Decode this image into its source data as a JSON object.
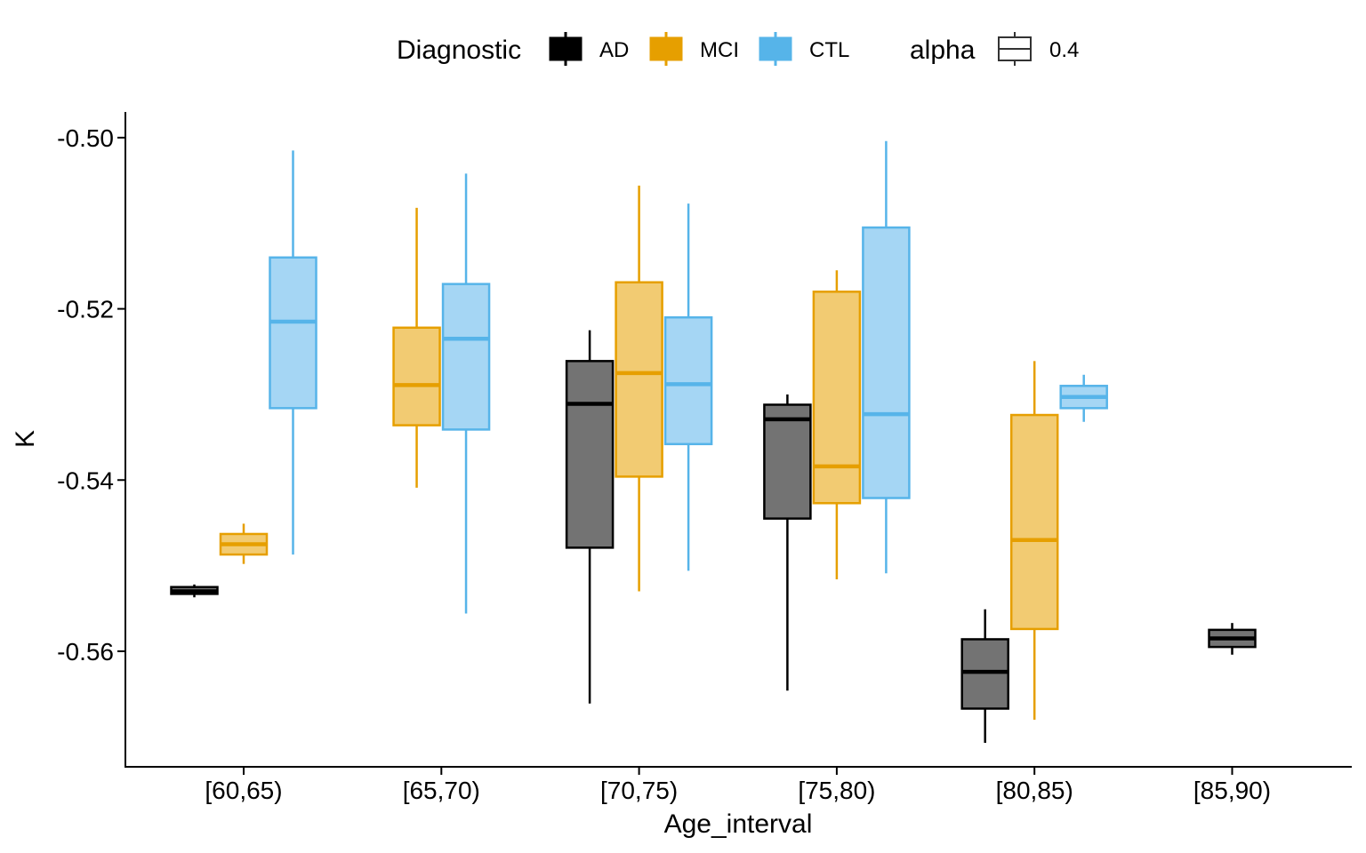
{
  "chart_data": {
    "type": "box",
    "xlabel": "Age_interval",
    "ylabel": "K",
    "categories": [
      "[60,65)",
      "[65,70)",
      "[70,75)",
      "[75,80)",
      "[80,85)",
      "[85,90)"
    ],
    "yticks": [
      "-0.50",
      "-0.52",
      "-0.54",
      "-0.56"
    ],
    "ytick_values": [
      -0.5,
      -0.52,
      -0.54,
      -0.56
    ],
    "ylim": [
      -0.5735,
      -0.497
    ],
    "grid": false,
    "legend_position": "top",
    "legend": {
      "fill_title": "Diagnostic",
      "alpha_title": "alpha",
      "alpha_value": "0.4"
    },
    "series": [
      {
        "name": "AD",
        "color": "#000000",
        "fill": "#737373",
        "boxes": [
          {
            "category": "[60,65)",
            "whisker_low": -0.5537,
            "q1": -0.5533,
            "median": -0.553,
            "q3": -0.5525,
            "whisker_high": -0.5522
          },
          {
            "category": "[70,75)",
            "whisker_low": -0.5661,
            "q1": -0.5479,
            "median": -0.5311,
            "q3": -0.5261,
            "whisker_high": -0.5225
          },
          {
            "category": "[75,80)",
            "whisker_low": -0.5646,
            "q1": -0.5445,
            "median": -0.5329,
            "q3": -0.5312,
            "whisker_high": -0.53
          },
          {
            "category": "[80,85)",
            "whisker_low": -0.5707,
            "q1": -0.5667,
            "median": -0.5624,
            "q3": -0.5586,
            "whisker_high": -0.5551
          },
          {
            "category": "[85,90)",
            "whisker_low": -0.5604,
            "q1": -0.5595,
            "median": -0.5585,
            "q3": -0.5575,
            "whisker_high": -0.5567
          }
        ]
      },
      {
        "name": "MCI",
        "color": "#E69F00",
        "fill": "#F2CB72",
        "boxes": [
          {
            "category": "[60,65)",
            "whisker_low": -0.5498,
            "q1": -0.5487,
            "median": -0.5475,
            "q3": -0.5463,
            "whisker_high": -0.5451
          },
          {
            "category": "[65,70)",
            "whisker_low": -0.5409,
            "q1": -0.5336,
            "median": -0.5289,
            "q3": -0.5222,
            "whisker_high": -0.5082
          },
          {
            "category": "[70,75)",
            "whisker_low": -0.553,
            "q1": -0.5396,
            "median": -0.5275,
            "q3": -0.5169,
            "whisker_high": -0.5056
          },
          {
            "category": "[75,80)",
            "whisker_low": -0.5516,
            "q1": -0.5427,
            "median": -0.5384,
            "q3": -0.518,
            "whisker_high": -0.5155
          },
          {
            "category": "[80,85)",
            "whisker_low": -0.568,
            "q1": -0.5574,
            "median": -0.547,
            "q3": -0.5324,
            "whisker_high": -0.5261
          }
        ]
      },
      {
        "name": "CTL",
        "color": "#56B4E9",
        "fill": "#A5D6F4",
        "boxes": [
          {
            "category": "[60,65)",
            "whisker_low": -0.5487,
            "q1": -0.5316,
            "median": -0.5215,
            "q3": -0.514,
            "whisker_high": -0.5015
          },
          {
            "category": "[65,70)",
            "whisker_low": -0.5556,
            "q1": -0.5341,
            "median": -0.5235,
            "q3": -0.5171,
            "whisker_high": -0.5042
          },
          {
            "category": "[70,75)",
            "whisker_low": -0.5506,
            "q1": -0.5358,
            "median": -0.5288,
            "q3": -0.521,
            "whisker_high": -0.5077
          },
          {
            "category": "[75,80)",
            "whisker_low": -0.5509,
            "q1": -0.5421,
            "median": -0.5323,
            "q3": -0.5105,
            "whisker_high": -0.5004
          },
          {
            "category": "[80,85)",
            "whisker_low": -0.5332,
            "q1": -0.5316,
            "median": -0.5303,
            "q3": -0.529,
            "whisker_high": -0.5277
          }
        ]
      }
    ]
  }
}
